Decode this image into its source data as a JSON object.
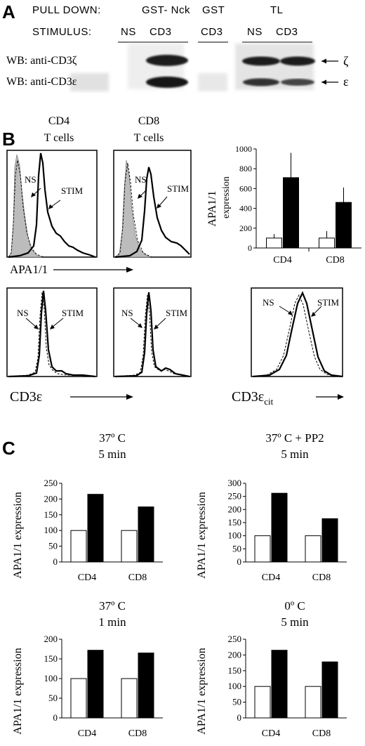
{
  "panel_a": {
    "letter": "A",
    "pull_down_label": "PULL DOWN:",
    "stimulus_label": "STIMULUS:",
    "pull_down_groups": [
      "GST- Nck",
      "GST",
      "TL"
    ],
    "stimulus_items": [
      "NS",
      "CD3",
      "CD3",
      "NS",
      "CD3"
    ],
    "blot_rows": [
      "WB: anti-CD3ζ",
      "WB: anti-CD3ε"
    ],
    "arrow_labels": [
      "ζ",
      "ε"
    ]
  },
  "panel_b": {
    "letter": "B",
    "hist_titles": [
      {
        "line1": "CD4",
        "line2": "T cells"
      },
      {
        "line1": "CD8",
        "line2": "T cells"
      }
    ],
    "hist_labels": {
      "ns": "NS",
      "stim": "STIM"
    },
    "x_labels": {
      "apa": "APA1/1",
      "cd3e": "CD3ε",
      "cd3ecit": "CD3ε",
      "cd3ecit_sub": "cit"
    },
    "bar_ylabel_line1": "APA1/1",
    "bar_ylabel_line2": "expression"
  },
  "panel_c": {
    "letter": "C",
    "titles": [
      {
        "line1": "37º C",
        "line2": "5 min"
      },
      {
        "line1": "37º C + PP2",
        "line2": "5 min"
      },
      {
        "line1": "37º C",
        "line2": "1 min"
      },
      {
        "line1": "0º C",
        "line2": "5 min"
      }
    ],
    "ylabel": "APA1/1 expression"
  },
  "chart_data": [
    {
      "type": "bar",
      "panel": "B",
      "categories": [
        "CD4",
        "CD8"
      ],
      "series": [
        {
          "values": [
            100,
            100
          ],
          "color": "#ffffff"
        },
        {
          "values": [
            710,
            460
          ],
          "color": "#000000"
        }
      ],
      "error": [
        [
          40,
          70
        ],
        [
          250,
          150
        ]
      ],
      "ylim": [
        0,
        1000
      ],
      "yticks": [
        0,
        200,
        400,
        600,
        800,
        1000
      ],
      "ylabel": "APA1/1 expression"
    },
    {
      "type": "bar",
      "panel": "C1",
      "categories": [
        "CD4",
        "CD8"
      ],
      "series": [
        {
          "values": [
            100,
            100
          ],
          "color": "#ffffff"
        },
        {
          "values": [
            215,
            175
          ],
          "color": "#000000"
        }
      ],
      "ylim": [
        0,
        250
      ],
      "yticks": [
        0,
        50,
        100,
        150,
        200,
        250
      ],
      "ylabel": "APA1/1 expression"
    },
    {
      "type": "bar",
      "panel": "C2",
      "categories": [
        "CD4",
        "CD8"
      ],
      "series": [
        {
          "values": [
            100,
            100
          ],
          "color": "#ffffff"
        },
        {
          "values": [
            262,
            165
          ],
          "color": "#000000"
        }
      ],
      "ylim": [
        0,
        300
      ],
      "yticks": [
        0,
        50,
        100,
        150,
        200,
        250,
        300
      ],
      "ylabel": "APA1/1 expression"
    },
    {
      "type": "bar",
      "panel": "C3",
      "categories": [
        "CD4",
        "CD8"
      ],
      "series": [
        {
          "values": [
            100,
            100
          ],
          "color": "#ffffff"
        },
        {
          "values": [
            172,
            165
          ],
          "color": "#000000"
        }
      ],
      "ylim": [
        0,
        200
      ],
      "yticks": [
        0,
        50,
        100,
        150,
        200
      ],
      "ylabel": "APA1/1 expression"
    },
    {
      "type": "bar",
      "panel": "C4",
      "categories": [
        "CD4",
        "CD8"
      ],
      "series": [
        {
          "values": [
            100,
            100
          ],
          "color": "#ffffff"
        },
        {
          "values": [
            215,
            178
          ],
          "color": "#000000"
        }
      ],
      "ylim": [
        0,
        250
      ],
      "yticks": [
        0,
        50,
        100,
        150,
        200,
        250
      ],
      "ylabel": "APA1/1 expression"
    }
  ]
}
